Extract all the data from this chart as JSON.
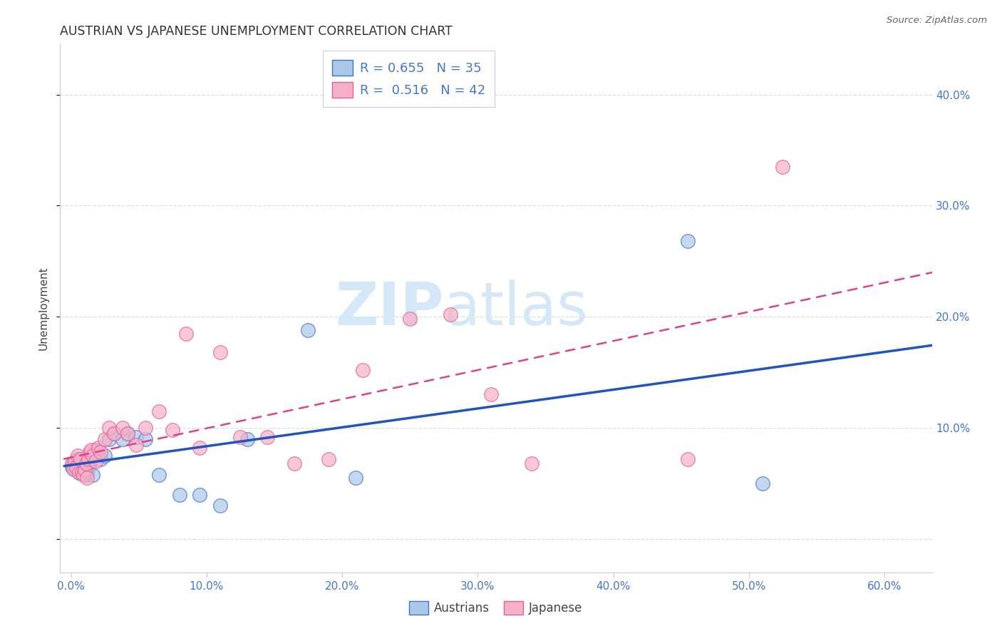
{
  "title": "AUSTRIAN VS JAPANESE UNEMPLOYMENT CORRELATION CHART",
  "source": "Source: ZipAtlas.com",
  "ylabel": "Unemployment",
  "xtick_vals": [
    0.0,
    0.1,
    0.2,
    0.3,
    0.4,
    0.5,
    0.6
  ],
  "xtick_labels": [
    "0.0%",
    "10.0%",
    "20.0%",
    "30.0%",
    "40.0%",
    "50.0%",
    "60.0%"
  ],
  "ytick_vals": [
    0.0,
    0.1,
    0.2,
    0.3,
    0.4
  ],
  "ytick_labels": [
    "",
    "10.0%",
    "20.0%",
    "30.0%",
    "40.0%"
  ],
  "xlim": [
    -0.008,
    0.635
  ],
  "ylim": [
    -0.03,
    0.445
  ],
  "legend1_label1": "R = 0.655   N = 35",
  "legend1_label2": "R =  0.516   N = 42",
  "legend2_label1": "Austrians",
  "legend2_label2": "Japanese",
  "blue_scatter_color": "#aac8e8",
  "blue_edge_color": "#4472c4",
  "pink_scatter_color": "#f5b0c5",
  "pink_edge_color": "#e060a0",
  "blue_line_color": "#2255bb",
  "pink_line_color": "#dd4488",
  "tick_label_color": "#4477cc",
  "grid_color": "#dddddd",
  "watermark_color": "#d5e8f8",
  "austrians_x": [
    0.001,
    0.002,
    0.003,
    0.004,
    0.005,
    0.006,
    0.007,
    0.008,
    0.009,
    0.01,
    0.011,
    0.012,
    0.013,
    0.014,
    0.015,
    0.016,
    0.018,
    0.02,
    0.022,
    0.025,
    0.028,
    0.032,
    0.038,
    0.042,
    0.048,
    0.055,
    0.065,
    0.08,
    0.095,
    0.11,
    0.13,
    0.175,
    0.21,
    0.455,
    0.51
  ],
  "austrians_y": [
    0.065,
    0.068,
    0.063,
    0.07,
    0.072,
    0.06,
    0.065,
    0.07,
    0.068,
    0.062,
    0.058,
    0.06,
    0.065,
    0.068,
    0.072,
    0.058,
    0.08,
    0.078,
    0.072,
    0.075,
    0.09,
    0.095,
    0.09,
    0.095,
    0.092,
    0.09,
    0.058,
    0.04,
    0.04,
    0.03,
    0.09,
    0.188,
    0.055,
    0.268,
    0.05
  ],
  "japanese_x": [
    0.001,
    0.002,
    0.003,
    0.004,
    0.005,
    0.006,
    0.007,
    0.008,
    0.009,
    0.01,
    0.011,
    0.012,
    0.013,
    0.014,
    0.015,
    0.016,
    0.018,
    0.02,
    0.022,
    0.025,
    0.028,
    0.032,
    0.038,
    0.042,
    0.048,
    0.055,
    0.065,
    0.075,
    0.085,
    0.095,
    0.11,
    0.125,
    0.145,
    0.165,
    0.19,
    0.215,
    0.25,
    0.28,
    0.31,
    0.34,
    0.455,
    0.525
  ],
  "japanese_y": [
    0.068,
    0.063,
    0.07,
    0.065,
    0.075,
    0.06,
    0.072,
    0.06,
    0.058,
    0.062,
    0.068,
    0.055,
    0.072,
    0.078,
    0.08,
    0.075,
    0.07,
    0.082,
    0.078,
    0.09,
    0.1,
    0.095,
    0.1,
    0.095,
    0.085,
    0.1,
    0.115,
    0.098,
    0.185,
    0.082,
    0.168,
    0.092,
    0.092,
    0.068,
    0.072,
    0.152,
    0.198,
    0.202,
    0.13,
    0.068,
    0.072,
    0.335
  ]
}
